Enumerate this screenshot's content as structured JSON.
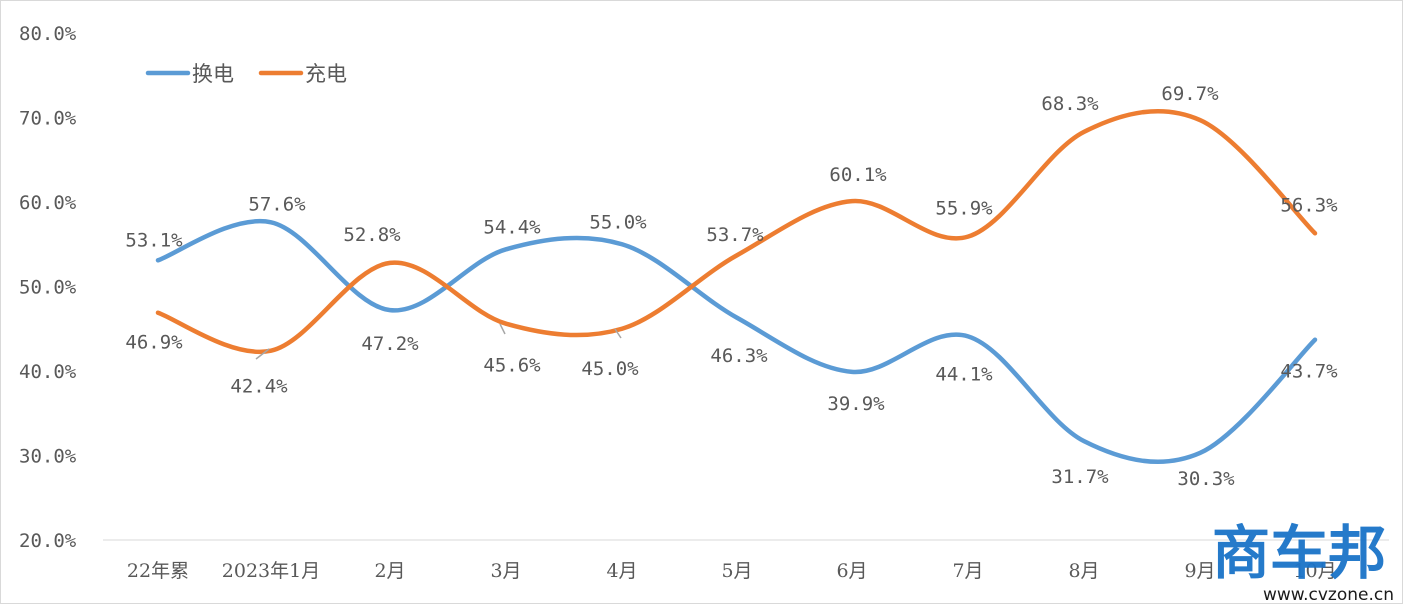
{
  "chart_data": {
    "type": "line",
    "title": "",
    "xlabel": "",
    "ylabel": "",
    "categories": [
      "22年累",
      "2023年1月",
      "2月",
      "3月",
      "4月",
      "5月",
      "6月",
      "7月",
      "8月",
      "9月",
      "10月"
    ],
    "ylim": [
      20,
      80
    ],
    "yticks": [
      "20.0%",
      "30.0%",
      "40.0%",
      "50.0%",
      "60.0%",
      "70.0%",
      "80.0%"
    ],
    "grid": false,
    "smooth": true,
    "legend_position": "top-left",
    "series": [
      {
        "name": "换电",
        "color": "#5b9bd5",
        "values": [
          53.1,
          57.6,
          47.2,
          54.4,
          55.0,
          46.3,
          39.9,
          44.1,
          31.7,
          30.3,
          43.7
        ],
        "labels": [
          "53.1%",
          "57.6%",
          "47.2%",
          "54.4%",
          "55.0%",
          "46.3%",
          "39.9%",
          "44.1%",
          "31.7%",
          "30.3%",
          "43.7%"
        ]
      },
      {
        "name": "充电",
        "color": "#ed7d31",
        "values": [
          46.9,
          42.4,
          52.8,
          45.6,
          45.0,
          53.7,
          60.1,
          55.9,
          68.3,
          69.7,
          56.3
        ],
        "labels": [
          "46.9%",
          "42.4%",
          "52.8%",
          "45.6%",
          "45.0%",
          "53.7%",
          "60.1%",
          "55.9%",
          "68.3%",
          "69.7%",
          "56.3%"
        ]
      }
    ]
  },
  "watermark": {
    "brand": "商车邦",
    "url": "www.cvzone.cn",
    "color": "#1a73c8"
  }
}
